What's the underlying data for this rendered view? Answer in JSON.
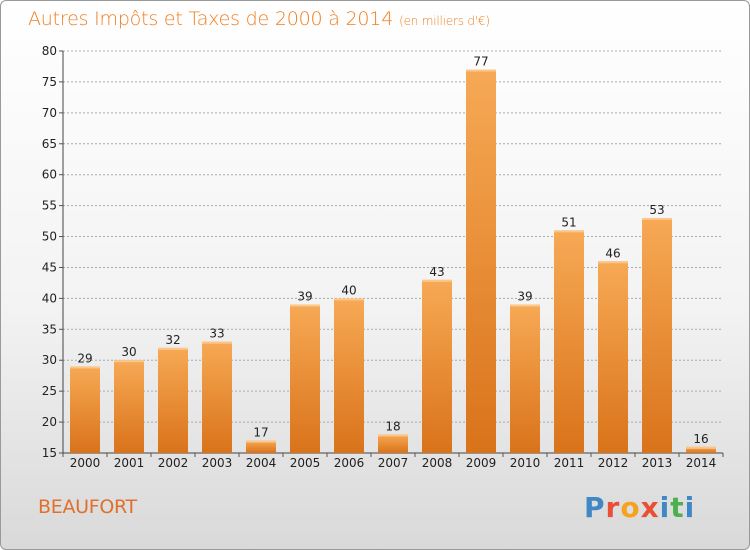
{
  "header": {
    "title": "Autres Impôts et Taxes de 2000 à 2014",
    "unit": "(en milliers d'€)"
  },
  "footer": {
    "commune": "BEAUFORT",
    "logo_text": "Proxiti",
    "logo_colors": [
      "#3f88c5",
      "#e94f37",
      "#f6a21e",
      "#e94f37",
      "#3f88c5",
      "#4caf50",
      "#3f88c5"
    ]
  },
  "colors": {
    "bar_light": "#f7a955",
    "bar_dark": "#d9731a",
    "title": "#ef7f20",
    "grid": "#aaaaaa"
  },
  "chart_data": {
    "type": "bar",
    "title": "Autres Impôts et Taxes de 2000 à 2014",
    "subtitle": "(en milliers d'€)",
    "xlabel": "",
    "ylabel": "",
    "categories": [
      "2000",
      "2001",
      "2002",
      "2003",
      "2004",
      "2005",
      "2006",
      "2007",
      "2008",
      "2009",
      "2010",
      "2011",
      "2012",
      "2013",
      "2014"
    ],
    "values": [
      29,
      30,
      32,
      33,
      17,
      39,
      40,
      18,
      43,
      77,
      39,
      51,
      46,
      53,
      16
    ],
    "value_labels": [
      "29",
      "30",
      "32",
      "33",
      "17",
      "39",
      "40",
      "18",
      "43",
      "77",
      "39",
      "51",
      "46",
      "53",
      "16"
    ],
    "ylim": [
      15,
      80
    ],
    "yticks": [
      15,
      20,
      25,
      30,
      35,
      40,
      45,
      50,
      55,
      60,
      65,
      70,
      75,
      80
    ],
    "grid": true
  }
}
